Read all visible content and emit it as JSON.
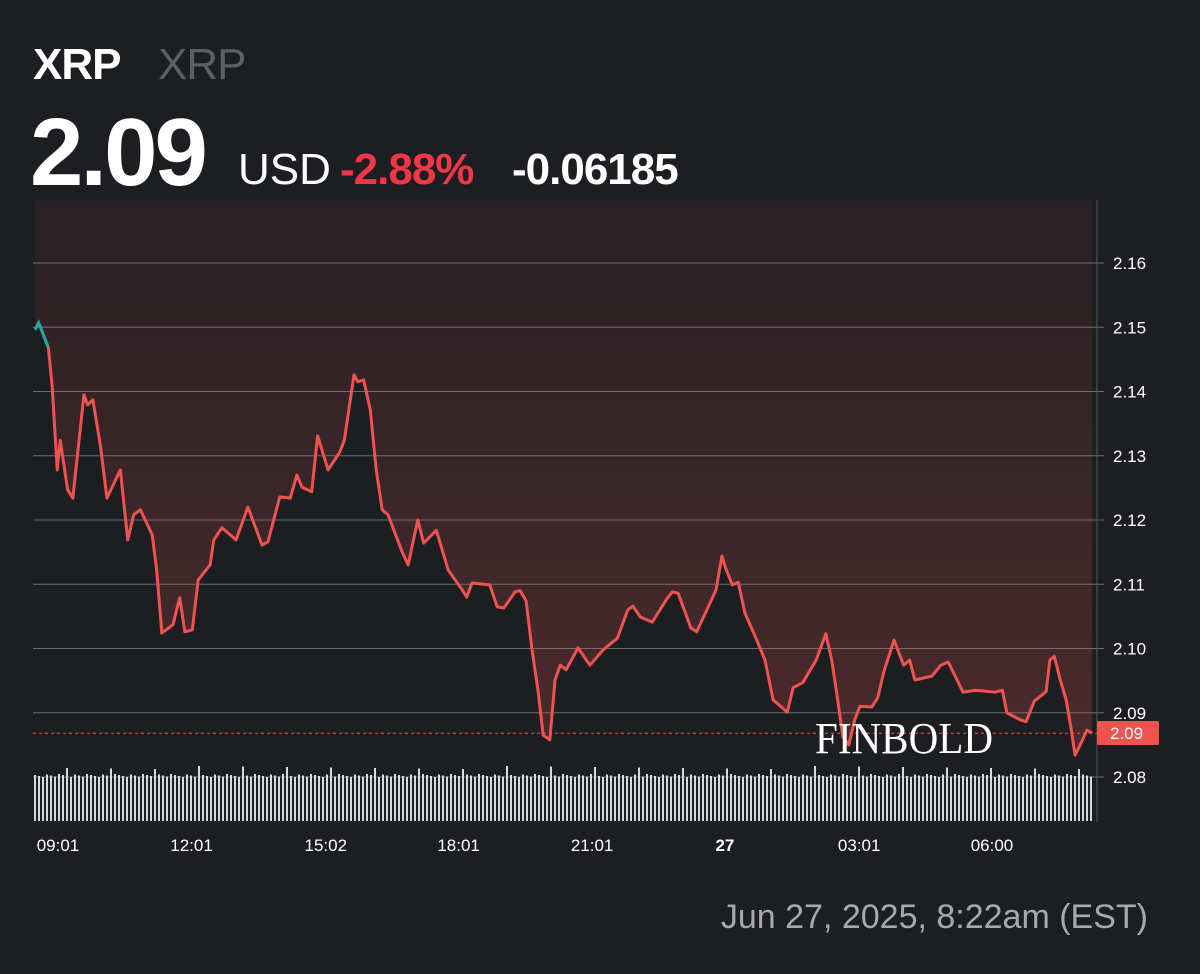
{
  "header": {
    "symbol": "XRP",
    "name": "XRP",
    "price": "2.09",
    "currency": "USD",
    "change_percent": "-2.88%",
    "change_abs": "-0.06185"
  },
  "timestamp": "Jun 27, 2025, 8:22am (EST)",
  "logo": "FINBOLD",
  "colors": {
    "down": "#ef5350",
    "up": "#26a69a",
    "change_text": "#f23645",
    "background": "#1c1e22"
  },
  "chart_data": {
    "type": "line",
    "title": "",
    "xlabel": "",
    "ylabel": "",
    "ylim": [
      2.073,
      2.17
    ],
    "y_ticks": [
      "2.16",
      "2.15",
      "2.14",
      "2.13",
      "2.12",
      "2.11",
      "2.10",
      "2.09",
      "2.08"
    ],
    "y_tick_values": [
      2.16,
      2.15,
      2.14,
      2.13,
      2.12,
      2.11,
      2.1,
      2.09,
      2.08
    ],
    "x_ticks": [
      {
        "label": "09:01",
        "time": "09:01",
        "bold": false
      },
      {
        "label": "12:01",
        "time": "12:01",
        "bold": false
      },
      {
        "label": "15:02",
        "time": "15:02",
        "bold": false
      },
      {
        "label": "18:01",
        "time": "18:01",
        "bold": false
      },
      {
        "label": "21:01",
        "time": "21:01",
        "bold": false
      },
      {
        "label": "27",
        "time": "00:00",
        "bold": true
      },
      {
        "label": "03:01",
        "time": "03:01",
        "bold": false
      },
      {
        "label": "06:00",
        "time": "06:00",
        "bold": false
      }
    ],
    "last_price_label": "2.09",
    "last_price": 2.0868,
    "grid": true,
    "series": [
      {
        "x": [
          "08:30",
          "08:35",
          "08:48",
          "08:53",
          "09:00",
          "09:04",
          "09:14",
          "09:21",
          "09:36",
          "09:41",
          "09:48",
          "09:58",
          "10:07",
          "10:25",
          "10:35",
          "10:43",
          "10:52",
          "11:08",
          "11:14",
          "11:21",
          "11:36",
          "11:45",
          "11:52",
          "12:02",
          "12:10",
          "12:26",
          "12:31",
          "12:42",
          "13:01",
          "13:17",
          "13:36",
          "13:44",
          "14:00",
          "14:14",
          "14:23",
          "14:30",
          "14:43",
          "14:51",
          "15:05",
          "15:21",
          "15:27",
          "15:40",
          "15:45",
          "15:53",
          "16:02",
          "16:10",
          "16:18",
          "16:26",
          "16:45",
          "16:53",
          "17:06",
          "17:14",
          "17:31",
          "17:47",
          "18:06",
          "18:12",
          "18:19",
          "18:43",
          "18:53",
          "19:02",
          "19:17",
          "19:24",
          "19:32",
          "19:40",
          "19:48",
          "19:55",
          "20:04",
          "20:11",
          "20:18",
          "20:26",
          "20:42",
          "20:58",
          "21:16",
          "21:35",
          "21:49",
          "21:56",
          "22:06",
          "22:22",
          "22:41",
          "22:49",
          "22:57",
          "23:14",
          "23:22",
          "23:48",
          "23:56",
          "00:01",
          "00:10",
          "00:18",
          "00:27",
          "00:43",
          "00:54",
          "01:05",
          "01:24",
          "01:32",
          "01:45",
          "02:03",
          "02:16",
          "02:24",
          "02:32",
          "02:39",
          "02:47",
          "02:55",
          "03:02",
          "03:18",
          "03:26",
          "03:34",
          "03:48",
          "04:01",
          "04:09",
          "04:16",
          "04:39",
          "04:51",
          "05:01",
          "05:21",
          "05:38",
          "06:04",
          "06:14",
          "06:20",
          "06:38",
          "06:46",
          "06:57",
          "07:13",
          "07:18",
          "07:24",
          "07:32",
          "07:40",
          "07:47",
          "07:52",
          "07:59",
          "08:08",
          "08:15"
        ],
        "y": [
          2.1496,
          2.1507,
          2.1468,
          2.141,
          2.1278,
          2.1324,
          2.1247,
          2.1234,
          2.1395,
          2.1379,
          2.1387,
          2.1317,
          2.1234,
          2.1278,
          2.1169,
          2.1208,
          2.1216,
          2.1177,
          2.1122,
          2.1024,
          2.1037,
          2.1079,
          2.1026,
          2.1029,
          2.1107,
          2.113,
          2.1169,
          2.1188,
          2.1169,
          2.122,
          2.1161,
          2.1166,
          2.1236,
          2.1234,
          2.127,
          2.1251,
          2.1244,
          2.1331,
          2.1278,
          2.1306,
          2.1324,
          2.1426,
          2.1415,
          2.1418,
          2.1371,
          2.1278,
          2.1216,
          2.1208,
          2.115,
          2.113,
          2.12,
          2.1164,
          2.1184,
          2.1122,
          2.1091,
          2.108,
          2.1102,
          2.1099,
          2.1065,
          2.1063,
          2.1088,
          2.109,
          2.1074,
          2.0998,
          2.0935,
          2.0865,
          2.0858,
          2.0951,
          2.0974,
          2.0967,
          2.1001,
          2.0974,
          2.0998,
          2.1016,
          2.106,
          2.1066,
          2.1049,
          2.1041,
          2.1076,
          2.1088,
          2.1086,
          2.1032,
          2.1026,
          2.1091,
          2.1144,
          2.1125,
          2.1099,
          2.1103,
          2.1055,
          2.1013,
          2.0982,
          2.092,
          2.0901,
          2.0939,
          2.0947,
          2.0982,
          2.1023,
          2.0982,
          2.092,
          2.0862,
          2.085,
          2.0889,
          2.091,
          2.0909,
          2.0923,
          2.0963,
          2.1013,
          2.0974,
          2.0982,
          2.0951,
          2.0957,
          2.0974,
          2.0979,
          2.0932,
          2.0935,
          2.0932,
          2.0935,
          2.09,
          2.0889,
          2.0886,
          2.0918,
          2.0933,
          2.0982,
          2.0988,
          2.0951,
          2.092,
          2.0873,
          2.0834,
          2.085,
          2.0873,
          2.0868
        ]
      }
    ]
  }
}
